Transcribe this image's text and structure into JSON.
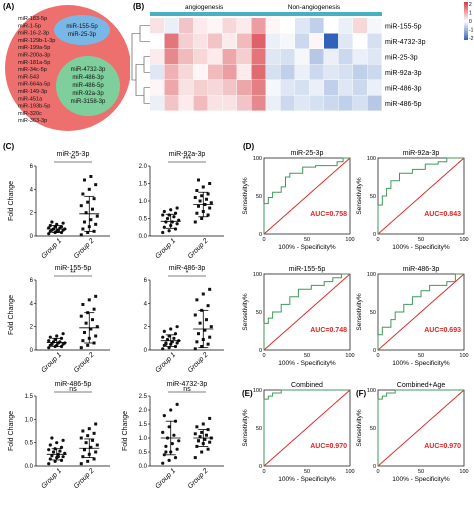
{
  "labels": {
    "A": "(A)",
    "B": "(B)",
    "C": "(C)",
    "D": "(D)",
    "E": "(E)",
    "F": "(F)"
  },
  "colors": {
    "venn_outer": "#ed6f6e",
    "venn_blue": "#79b8e6",
    "venn_green": "#7fcf9d",
    "heat_red": "#d63b43",
    "heat_blue": "#2f62b8",
    "heat_bar": "#46b1c5",
    "roc_curve": "#3f9a5b",
    "roc_diag": "#e02424",
    "auc_text": "#e02424"
  },
  "venn": {
    "outer_list": [
      "miR-183-5p",
      "miR-1-5p",
      "miR-16-2-3p",
      "miR-129b-1-3p",
      "miR-199a-5p",
      "miR-200a-3p",
      "miR-181a-5p",
      "miR-34c-5p",
      "miR-543",
      "miR-664a-5p",
      "miR-149-3p",
      "miR-451a",
      "miR-193b-5p",
      "miR-320c",
      "miR-363-3p"
    ],
    "blue_list": [
      "miR-155-5p",
      "miR-25-3p"
    ],
    "green_list": [
      "miR-4732-3p",
      "miR-486-3p",
      "miR-486-5p",
      "miR-92a-3p",
      "miR-3158-3p"
    ]
  },
  "heatmap": {
    "group_labels": [
      "angiogenesis",
      "Non-angiogenesis"
    ],
    "row_labels": [
      "miR-155-5p",
      "miR-4732-3p",
      "miR-25-3p",
      "miR-92a-3p",
      "miR-486-3p",
      "miR-486-5p"
    ],
    "legend_ticks": [
      "2",
      "1",
      "0",
      "-1",
      "-2"
    ],
    "n_cols": 16,
    "cells": [
      [
        0.3,
        -0.2,
        0.6,
        0.2,
        0.1,
        0.4,
        0.2,
        1.0,
        0.1,
        0.0,
        -0.3,
        -0.6,
        0.0,
        -0.2,
        0.4,
        -0.1
      ],
      [
        0.0,
        1.4,
        0.5,
        0.3,
        0.6,
        0.2,
        0.7,
        1.6,
        -0.2,
        -0.1,
        -0.5,
        0.1,
        -2.0,
        -0.3,
        0.0,
        -0.4
      ],
      [
        0.2,
        1.2,
        0.7,
        0.4,
        0.2,
        0.9,
        0.5,
        1.4,
        -0.3,
        -0.4,
        -0.1,
        -0.7,
        -0.2,
        -0.5,
        -0.2,
        -0.3
      ],
      [
        -0.3,
        0.8,
        0.4,
        0.1,
        0.7,
        1.0,
        0.2,
        1.5,
        -0.4,
        -0.6,
        -0.2,
        -0.5,
        -0.3,
        -0.4,
        -0.6,
        -0.5
      ],
      [
        0.1,
        0.9,
        0.3,
        0.5,
        0.4,
        0.6,
        0.9,
        1.3,
        -0.1,
        -0.3,
        -0.4,
        -0.2,
        -0.6,
        -0.3,
        -0.5,
        -0.2
      ],
      [
        -0.2,
        0.6,
        0.2,
        0.7,
        0.3,
        0.3,
        0.6,
        1.2,
        -0.2,
        -0.5,
        -0.3,
        -0.4,
        -0.5,
        -0.6,
        -0.4,
        -0.7
      ]
    ]
  },
  "scatter_panels": [
    {
      "title": "miR-25-3p",
      "sig": "**",
      "ylabel": "Fold Change",
      "yticks": [
        "0",
        "2",
        "4",
        "6"
      ],
      "ymax": 6,
      "g1": [
        0.2,
        0.3,
        0.3,
        0.4,
        0.4,
        0.5,
        0.5,
        0.5,
        0.6,
        0.6,
        0.7,
        0.7,
        0.8,
        0.8,
        0.9,
        1.0,
        1.1,
        1.2,
        0.4
      ],
      "g2": [
        0.1,
        0.3,
        0.4,
        0.6,
        0.8,
        1.0,
        1.2,
        1.4,
        1.7,
        2.0,
        2.3,
        2.6,
        2.9,
        3.2,
        3.6,
        4.0,
        4.4,
        4.8,
        5.1
      ],
      "m1": 0.6,
      "s1": 0.3,
      "m2": 1.9,
      "s2": 1.5
    },
    {
      "title": "miR-92a-3p",
      "sig": "***",
      "ylabel": "",
      "yticks": [
        "0.0",
        "0.5",
        "1.0",
        "1.5",
        "2.0"
      ],
      "ymax": 2.0,
      "g1": [
        0.1,
        0.15,
        0.2,
        0.25,
        0.3,
        0.35,
        0.4,
        0.4,
        0.45,
        0.5,
        0.55,
        0.6,
        0.6,
        0.65,
        0.7,
        0.75,
        0.8
      ],
      "g2": [
        0.4,
        0.5,
        0.6,
        0.65,
        0.7,
        0.8,
        0.85,
        0.9,
        0.95,
        1.0,
        1.05,
        1.1,
        1.15,
        1.2,
        1.3,
        1.4,
        1.5,
        1.6
      ],
      "m1": 0.42,
      "s1": 0.2,
      "m2": 0.9,
      "s2": 0.35
    },
    {
      "title": "miR-155-5p",
      "sig": "**",
      "ylabel": "Fold Change",
      "yticks": [
        "0",
        "2",
        "4",
        "6"
      ],
      "ymax": 6,
      "g1": [
        0.2,
        0.3,
        0.3,
        0.4,
        0.4,
        0.5,
        0.5,
        0.6,
        0.6,
        0.7,
        0.7,
        0.8,
        0.9,
        1.0,
        1.1,
        1.2,
        1.4,
        0.5
      ],
      "g2": [
        0.2,
        0.4,
        0.6,
        0.8,
        1.0,
        1.2,
        1.5,
        1.8,
        2.0,
        2.3,
        2.6,
        2.9,
        3.2,
        3.5,
        3.9,
        4.3,
        4.6
      ],
      "m1": 0.65,
      "s1": 0.35,
      "m2": 1.9,
      "s2": 1.3
    },
    {
      "title": "miR-486-3p",
      "sig": "*",
      "ylabel": "",
      "yticks": [
        "0",
        "2",
        "4",
        "6"
      ],
      "ymax": 6,
      "g1": [
        0.1,
        0.2,
        0.3,
        0.4,
        0.5,
        0.6,
        0.6,
        0.7,
        0.8,
        0.9,
        1.0,
        1.1,
        1.2,
        1.4,
        1.6,
        1.8,
        2.0,
        0.5
      ],
      "g2": [
        0.1,
        0.3,
        0.5,
        0.7,
        0.9,
        1.1,
        1.4,
        1.7,
        2.0,
        2.3,
        2.6,
        3.0,
        3.4,
        3.8,
        4.3,
        4.8,
        5.2
      ],
      "m1": 0.8,
      "s1": 0.5,
      "m2": 1.8,
      "s2": 1.6
    },
    {
      "title": "miR-486-5p",
      "sig": "ns",
      "ylabel": "Fold Change",
      "yticks": [
        "0.0",
        "0.5",
        "1.0",
        "1.5"
      ],
      "ymax": 1.5,
      "g1": [
        0.05,
        0.1,
        0.12,
        0.15,
        0.18,
        0.2,
        0.22,
        0.25,
        0.27,
        0.3,
        0.32,
        0.35,
        0.37,
        0.4,
        0.45,
        0.5,
        0.55,
        0.6,
        0.2
      ],
      "g2": [
        0.05,
        0.1,
        0.15,
        0.2,
        0.25,
        0.3,
        0.35,
        0.4,
        0.45,
        0.5,
        0.55,
        0.6,
        0.65,
        0.7,
        0.75,
        0.8,
        0.9,
        0.35
      ],
      "m1": 0.25,
      "s1": 0.12,
      "m2": 0.38,
      "s2": 0.2
    },
    {
      "title": "miR-4732-3p",
      "sig": "ns",
      "ylabel": "Fold Change",
      "yticks": [
        "0.0",
        "0.5",
        "1.0",
        "1.5",
        "2.0",
        "2.5"
      ],
      "ymax": 2.5,
      "g1": [
        0.1,
        0.2,
        0.3,
        0.4,
        0.5,
        0.6,
        0.7,
        0.8,
        0.9,
        1.0,
        1.1,
        1.2,
        1.4,
        1.6,
        1.8,
        2.0,
        2.2,
        0.5
      ],
      "g2": [
        0.3,
        0.5,
        0.6,
        0.7,
        0.8,
        0.85,
        0.9,
        0.95,
        1.0,
        1.05,
        1.1,
        1.15,
        1.2,
        1.3,
        1.4,
        1.5,
        1.7,
        0.9
      ],
      "m1": 1.0,
      "s1": 0.6,
      "m2": 1.0,
      "s2": 0.3
    }
  ],
  "scatter_xticks": [
    "Group 1",
    "Group 2"
  ],
  "roc_panels": [
    {
      "title": "miR-25-3p",
      "auc": "AUC=0.758",
      "tag": "",
      "curve": [
        [
          0,
          0
        ],
        [
          0,
          40
        ],
        [
          5,
          40
        ],
        [
          5,
          48
        ],
        [
          10,
          48
        ],
        [
          10,
          55
        ],
        [
          20,
          55
        ],
        [
          20,
          62
        ],
        [
          25,
          62
        ],
        [
          25,
          75
        ],
        [
          30,
          75
        ],
        [
          30,
          80
        ],
        [
          45,
          80
        ],
        [
          45,
          88
        ],
        [
          60,
          88
        ],
        [
          60,
          90
        ],
        [
          85,
          90
        ],
        [
          85,
          95
        ],
        [
          92,
          95
        ],
        [
          92,
          100
        ],
        [
          100,
          100
        ]
      ]
    },
    {
      "title": "miR-92a-3p",
      "auc": "AUC=0.843",
      "tag": "",
      "curve": [
        [
          0,
          0
        ],
        [
          0,
          38
        ],
        [
          5,
          38
        ],
        [
          5,
          50
        ],
        [
          10,
          50
        ],
        [
          10,
          60
        ],
        [
          15,
          60
        ],
        [
          15,
          70
        ],
        [
          25,
          70
        ],
        [
          25,
          80
        ],
        [
          40,
          80
        ],
        [
          40,
          85
        ],
        [
          55,
          85
        ],
        [
          55,
          92
        ],
        [
          70,
          92
        ],
        [
          70,
          95
        ],
        [
          80,
          95
        ],
        [
          80,
          100
        ],
        [
          100,
          100
        ]
      ]
    },
    {
      "title": "miR-155-5p",
      "auc": "AUC=0.748",
      "tag": "",
      "curve": [
        [
          0,
          0
        ],
        [
          0,
          35
        ],
        [
          5,
          35
        ],
        [
          5,
          42
        ],
        [
          10,
          42
        ],
        [
          10,
          50
        ],
        [
          20,
          50
        ],
        [
          20,
          60
        ],
        [
          30,
          60
        ],
        [
          30,
          70
        ],
        [
          40,
          70
        ],
        [
          40,
          80
        ],
        [
          55,
          80
        ],
        [
          55,
          85
        ],
        [
          70,
          85
        ],
        [
          70,
          90
        ],
        [
          80,
          90
        ],
        [
          80,
          95
        ],
        [
          90,
          95
        ],
        [
          90,
          100
        ],
        [
          100,
          100
        ]
      ]
    },
    {
      "title": "miR-486-3p",
      "auc": "AUC=0.693",
      "tag": "",
      "curve": [
        [
          0,
          0
        ],
        [
          0,
          20
        ],
        [
          5,
          20
        ],
        [
          5,
          30
        ],
        [
          15,
          30
        ],
        [
          15,
          40
        ],
        [
          20,
          40
        ],
        [
          20,
          50
        ],
        [
          30,
          50
        ],
        [
          30,
          60
        ],
        [
          40,
          60
        ],
        [
          40,
          70
        ],
        [
          50,
          70
        ],
        [
          50,
          78
        ],
        [
          60,
          78
        ],
        [
          60,
          85
        ],
        [
          80,
          85
        ],
        [
          80,
          90
        ],
        [
          90,
          90
        ],
        [
          90,
          100
        ],
        [
          100,
          100
        ]
      ]
    },
    {
      "title": "Combined",
      "auc": "AUC=0.970",
      "tag": "(E)",
      "curve": [
        [
          0,
          0
        ],
        [
          0,
          88
        ],
        [
          5,
          88
        ],
        [
          5,
          92
        ],
        [
          10,
          92
        ],
        [
          10,
          96
        ],
        [
          20,
          96
        ],
        [
          20,
          100
        ],
        [
          100,
          100
        ]
      ]
    },
    {
      "title": "Combined+Age",
      "auc": "AUC=0.970",
      "tag": "(F)",
      "curve": [
        [
          0,
          0
        ],
        [
          0,
          88
        ],
        [
          5,
          88
        ],
        [
          5,
          92
        ],
        [
          10,
          92
        ],
        [
          10,
          96
        ],
        [
          20,
          96
        ],
        [
          20,
          100
        ],
        [
          100,
          100
        ]
      ]
    }
  ],
  "roc_axis": {
    "ylabel": "Sensetivity%",
    "xlabel": "100% - Specificity%",
    "ticks": [
      "0",
      "50",
      "100"
    ]
  }
}
